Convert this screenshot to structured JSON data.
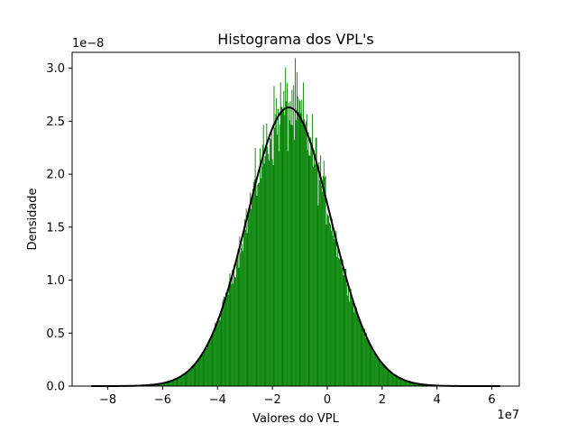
{
  "chart_data": {
    "type": "bar",
    "subtype": "histogram-with-density-curve",
    "title": "Histograma dos VPL's",
    "xlabel": "Valores do VPL",
    "ylabel": "Densidade",
    "x_offset_label": "1e7",
    "y_offset_label": "1e−8",
    "xlim": [
      -9.3,
      7.0
    ],
    "ylim": [
      0,
      3.15
    ],
    "x_ticks": [
      -8,
      -6,
      -4,
      -2,
      0,
      2,
      4,
      6
    ],
    "x_tick_labels": [
      "−8",
      "−6",
      "−4",
      "−2",
      "0",
      "2",
      "4",
      "6"
    ],
    "y_ticks": [
      0.0,
      0.5,
      1.0,
      1.5,
      2.0,
      2.5,
      3.0
    ],
    "y_tick_labels": [
      "0.0",
      "0.5",
      "1.0",
      "1.5",
      "2.0",
      "2.5",
      "3.0"
    ],
    "data_range": [
      -8.6,
      6.3
    ],
    "bins": 500,
    "histogram": {
      "color": "#008000",
      "mean": -1.4,
      "std": 1.52,
      "peak": 2.63
    },
    "density_curve": {
      "color": "#000000",
      "mean": -1.4,
      "std": 1.52,
      "peak": 2.63
    },
    "grid": false,
    "legend": "none"
  }
}
